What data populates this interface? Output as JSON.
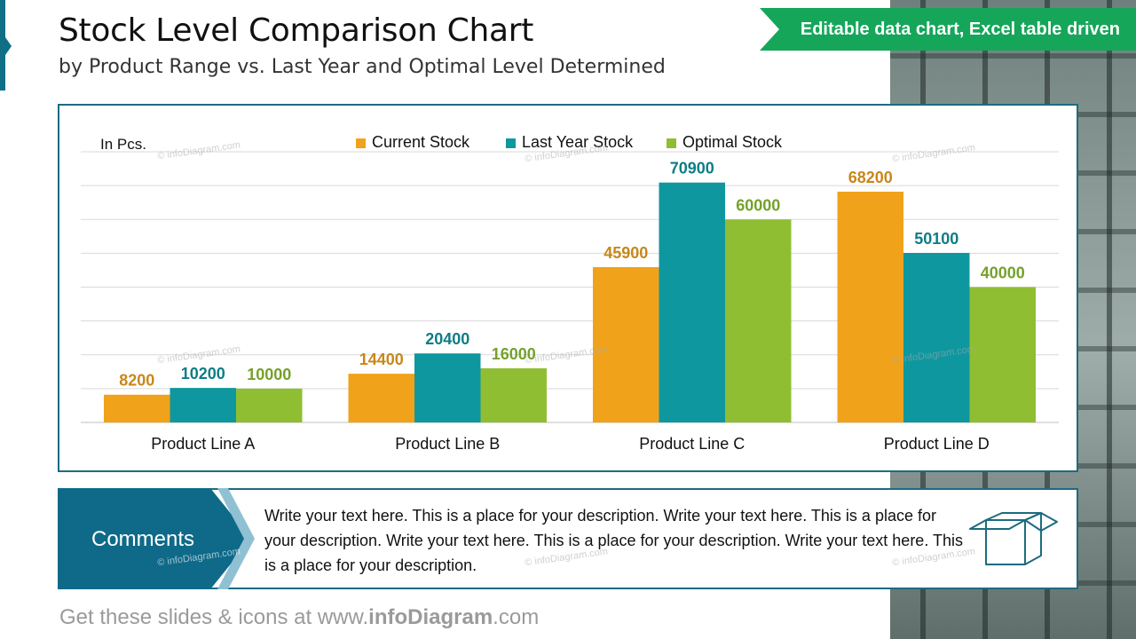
{
  "header": {
    "title": "Stock Level Comparison Chart",
    "subtitle": "by Product Range vs. Last Year and Optimal Level Determined",
    "banner": "Editable data chart, Excel table driven"
  },
  "chart_data": {
    "type": "bar",
    "unit_label": "In Pcs.",
    "categories": [
      "Product Line A",
      "Product Line B",
      "Product Line C",
      "Product Line D"
    ],
    "series": [
      {
        "name": "Current Stock",
        "color": "#f0a31a",
        "label_color": "#c8871a",
        "values": [
          8200,
          14400,
          45900,
          68200
        ]
      },
      {
        "name": "Last Year Stock",
        "color": "#0f97a0",
        "label_color": "#0e7d85",
        "values": [
          10200,
          20400,
          70900,
          50100
        ]
      },
      {
        "name": "Optimal Stock",
        "color": "#8fbe33",
        "label_color": "#74a12a",
        "values": [
          10000,
          16000,
          60000,
          40000
        ]
      }
    ],
    "ylim": [
      0,
      80000
    ],
    "gridlines": true,
    "legend_position": "top"
  },
  "comments": {
    "label": "Comments",
    "text": "Write your text here. This is a place for your description. Write your text here. This is a place for your description. Write your text here. This is a place for your description. Write your text here. This is a place for your description.",
    "icon": "open-box-icon"
  },
  "footer": {
    "prefix": "Get these slides & icons at www.",
    "brand": "infoDiagram",
    "suffix": ".com"
  },
  "watermark": "© infoDiagram.com"
}
